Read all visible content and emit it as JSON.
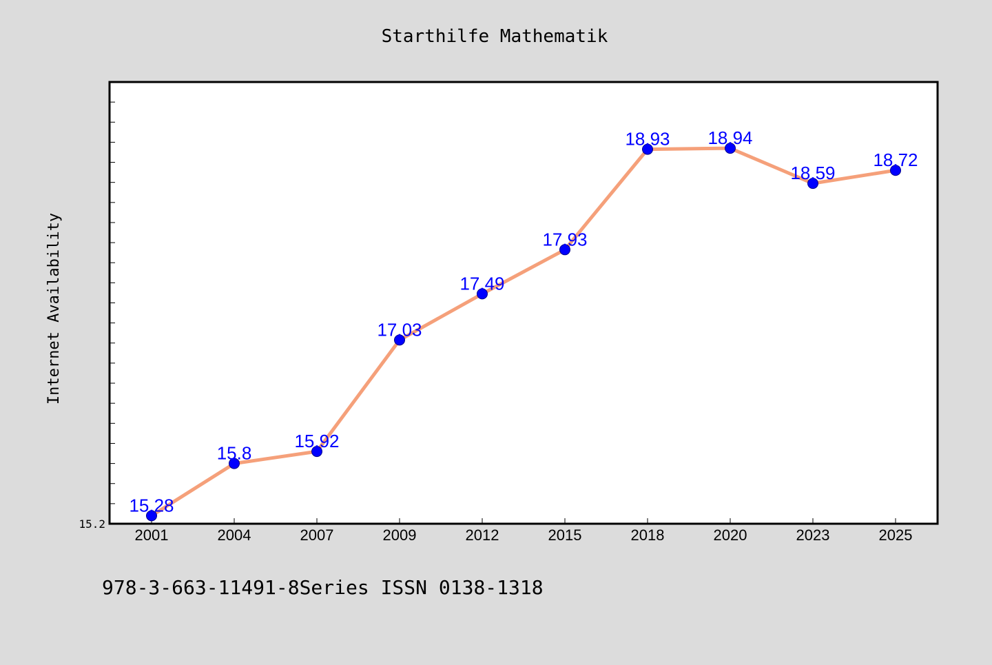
{
  "chart_data": {
    "type": "line",
    "title": "Starthilfe Mathematik",
    "xlabel": "",
    "ylabel": "Internet Availability",
    "categories": [
      "2001",
      "2004",
      "2007",
      "2009",
      "2012",
      "2015",
      "2018",
      "2020",
      "2023",
      "2025"
    ],
    "series": [
      {
        "values": [
          15.28,
          15.8,
          15.92,
          17.03,
          17.49,
          17.93,
          18.93,
          18.94,
          18.59,
          18.72
        ],
        "data_labels": [
          "15.28",
          "15.8",
          "15.92",
          "17.03",
          "17.49",
          "17.93",
          "18.93",
          "18.94",
          "18.59",
          "18.72"
        ]
      }
    ],
    "ylim": [
      15.2,
      19.6
    ],
    "y_tick_labels": [
      "15.2"
    ],
    "grid": false,
    "line_color": "#f5a07a",
    "marker_color": "#0000ff",
    "label_color": "#0000ff"
  },
  "footer": {
    "text": "978-3-663-11491-8Series ISSN 0138-1318"
  },
  "colors": {
    "background": "#dcdcdc",
    "plot_background": "#ffffff",
    "axis": "#000000"
  }
}
